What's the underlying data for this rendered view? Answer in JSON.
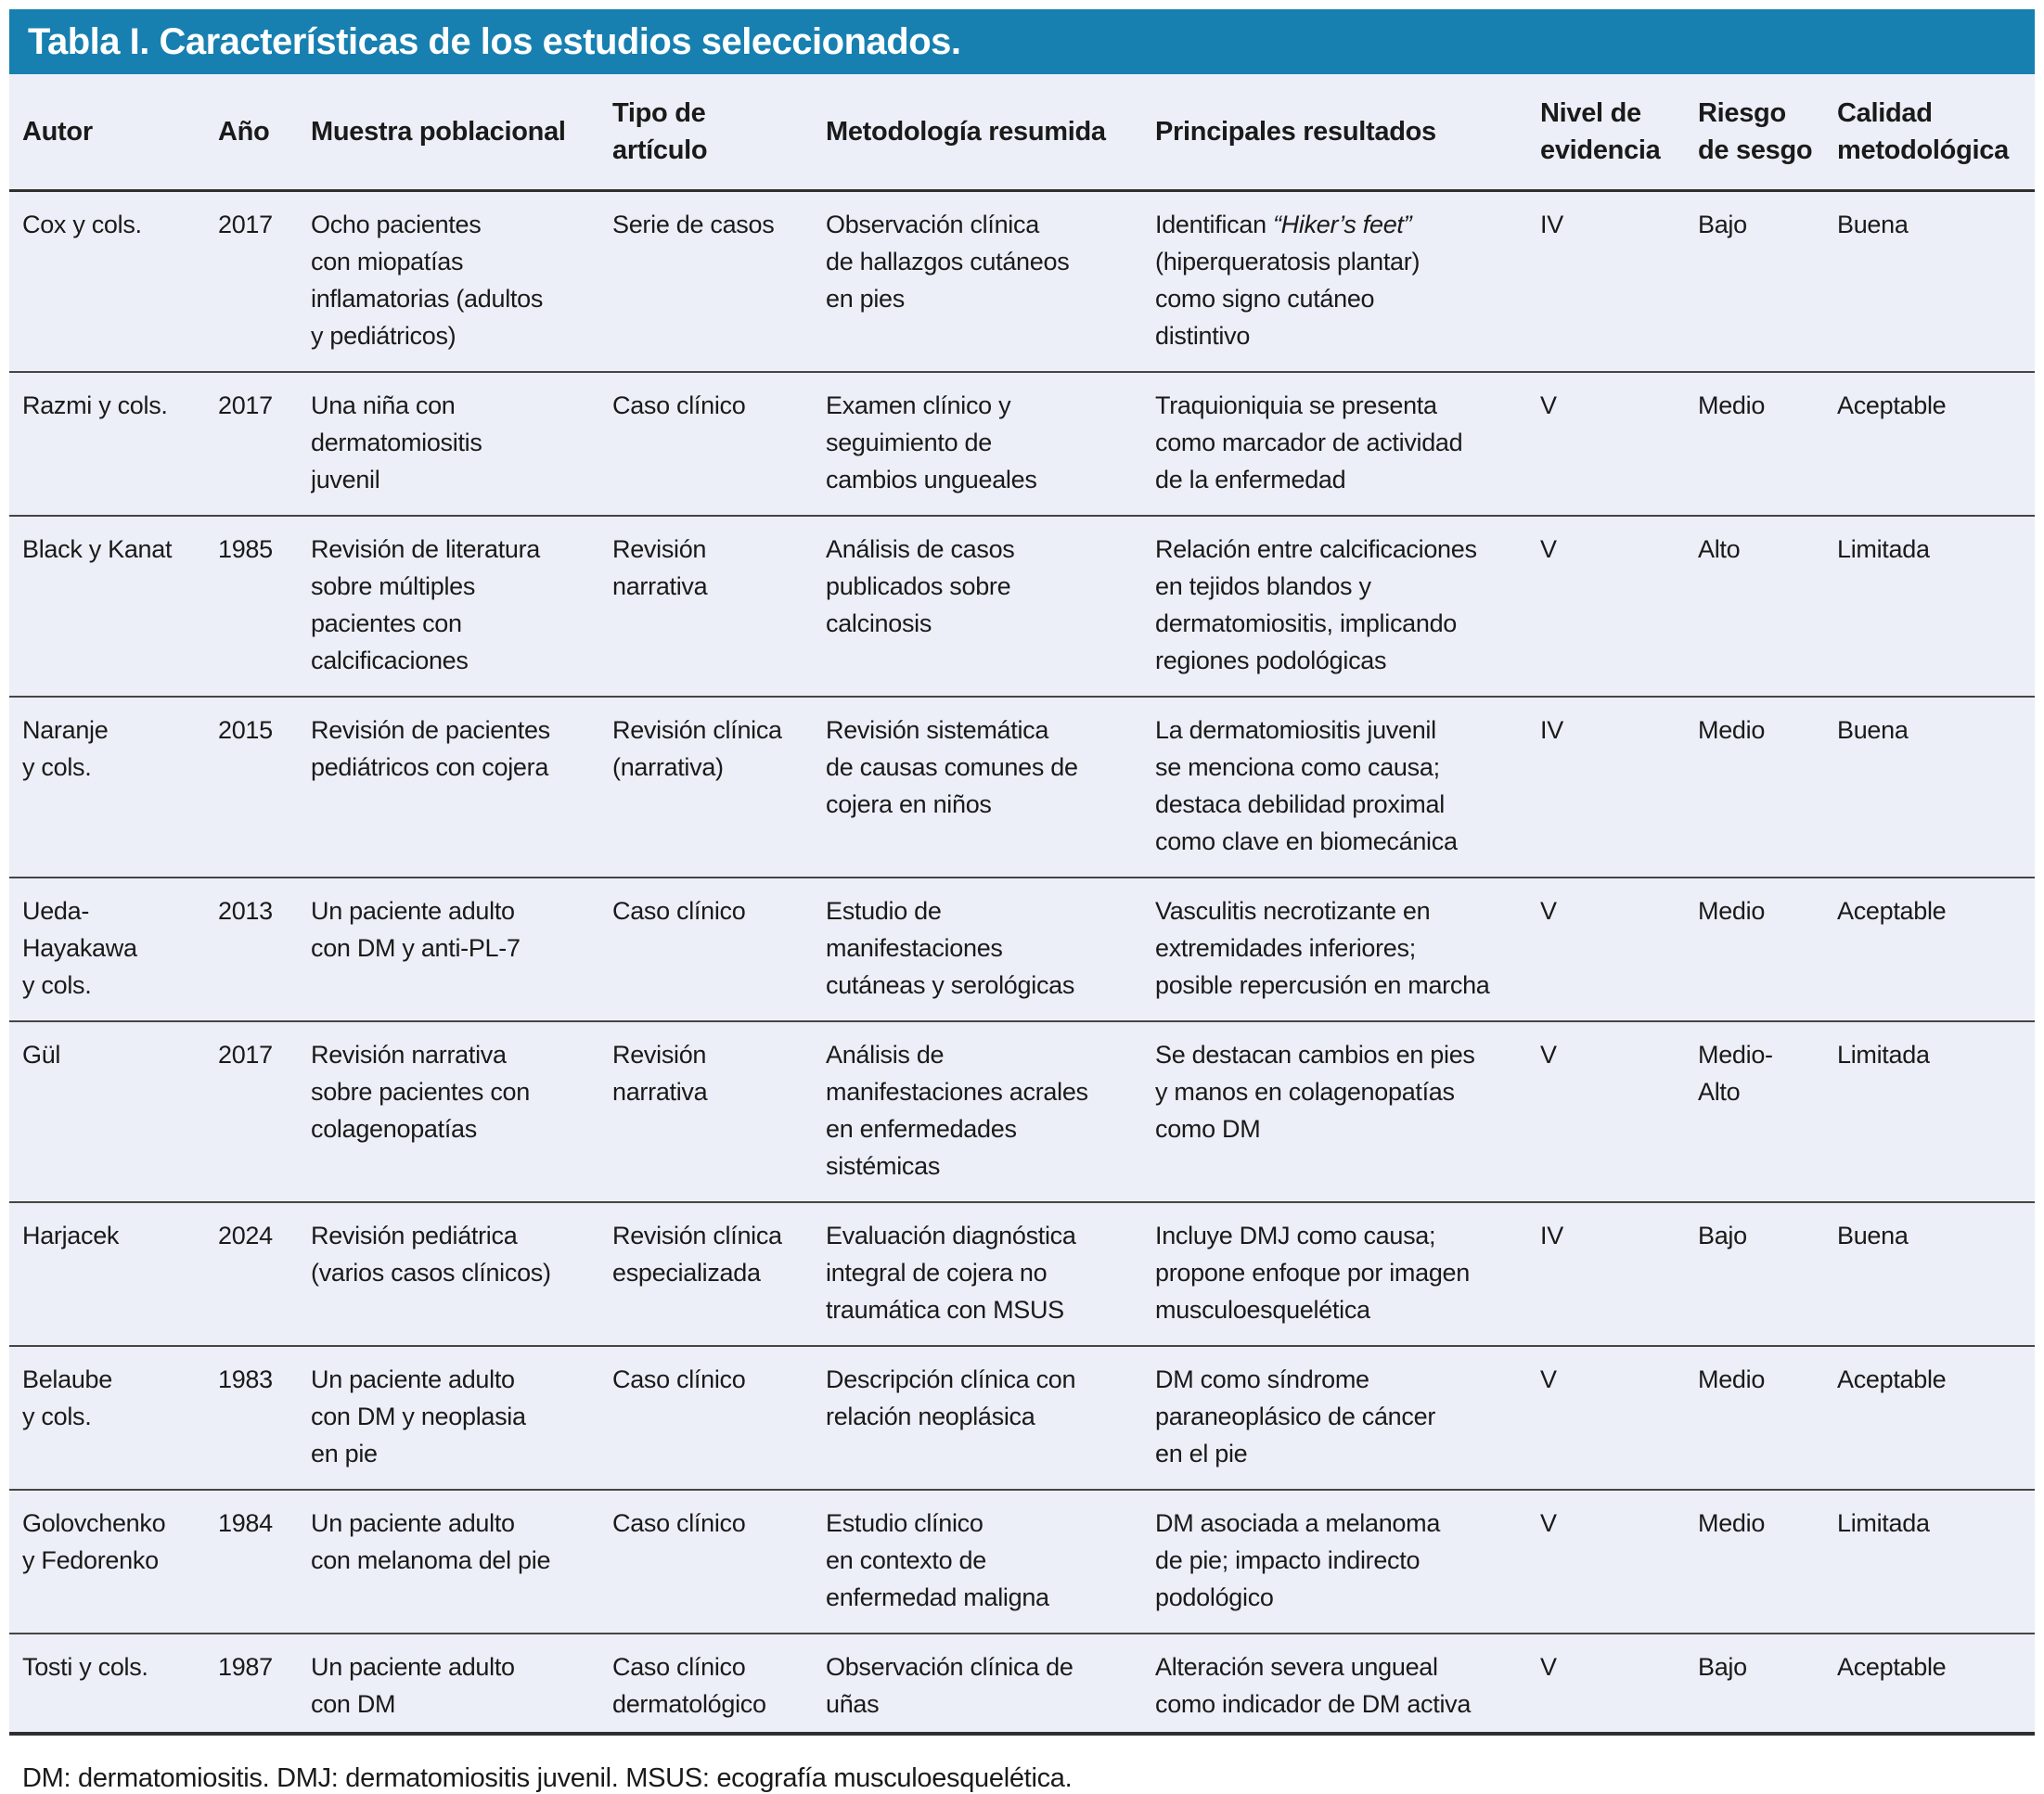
{
  "title": "Tabla I. Características de los estudios seleccionados.",
  "columns": [
    "Autor",
    "Año",
    "Muestra poblacional",
    "Tipo de\nartículo",
    "Metodología resumida",
    "Principales resultados",
    "Nivel de\nevidencia",
    "Riesgo\nde sesgo",
    "Calidad\nmetodológica"
  ],
  "rows": [
    {
      "autor": "Cox y cols.",
      "anio": "2017",
      "muestra": "Ocho pacientes\ncon miopatías\ninflamatorias (adultos\ny pediátricos)",
      "tipo": "Serie de casos",
      "metodologia": "Observación clínica\nde hallazgos cutáneos\nen pies",
      "resultados": [
        {
          "t": "Identifican "
        },
        {
          "t": "“Hiker’s feet”",
          "i": true
        },
        {
          "t": "\n(hiperqueratosis plantar)\ncomo signo cutáneo\ndistintivo"
        }
      ],
      "nivel": "IV",
      "riesgo": "Bajo",
      "calidad": "Buena"
    },
    {
      "autor": "Razmi y cols.",
      "anio": "2017",
      "muestra": "Una niña con\ndermatomiositis\njuvenil",
      "tipo": "Caso clínico",
      "metodologia": "Examen clínico y\nseguimiento de\ncambios ungueales",
      "resultados": "Traquioniquia se presenta\ncomo marcador de actividad\nde la enfermedad",
      "nivel": "V",
      "riesgo": "Medio",
      "calidad": "Aceptable"
    },
    {
      "autor": "Black y Kanat",
      "anio": "1985",
      "muestra": "Revisión de literatura\nsobre múltiples\npacientes con\ncalcificaciones",
      "tipo": "Revisión\nnarrativa",
      "metodologia": "Análisis de casos\npublicados sobre\ncalcinosis",
      "resultados": "Relación entre calcificaciones\nen tejidos blandos y\ndermatomiositis, implicando\nregiones podológicas",
      "nivel": "V",
      "riesgo": "Alto",
      "calidad": "Limitada"
    },
    {
      "autor": "Naranje\ny cols.",
      "anio": "2015",
      "muestra": "Revisión de pacientes\npediátricos con cojera",
      "tipo": "Revisión clínica\n(narrativa)",
      "metodologia": "Revisión sistemática\nde causas comunes de\ncojera en niños",
      "resultados": "La dermatomiositis juvenil\nse menciona como causa;\ndestaca debilidad proximal\ncomo clave en biomecánica",
      "nivel": "IV",
      "riesgo": "Medio",
      "calidad": "Buena"
    },
    {
      "autor": "Ueda-\nHayakawa\ny cols.",
      "anio": "2013",
      "muestra": "Un paciente adulto\ncon DM y anti-PL-7",
      "tipo": "Caso clínico",
      "metodologia": "Estudio de\nmanifestaciones\ncutáneas y serológicas",
      "resultados": "Vasculitis necrotizante en\nextremidades inferiores;\nposible repercusión en marcha",
      "nivel": "V",
      "riesgo": "Medio",
      "calidad": "Aceptable"
    },
    {
      "autor": "Gül",
      "anio": "2017",
      "muestra": "Revisión narrativa\nsobre pacientes con\ncolagenopatías",
      "tipo": "Revisión\nnarrativa",
      "metodologia": "Análisis de\nmanifestaciones acrales\nen enfermedades\nsistémicas",
      "resultados": "Se destacan cambios en pies\ny manos en colagenopatías\ncomo DM",
      "nivel": "V",
      "riesgo": "Medio-\nAlto",
      "calidad": "Limitada"
    },
    {
      "autor": "Harjacek",
      "anio": "2024",
      "muestra": "Revisión pediátrica\n(varios casos clínicos)",
      "tipo": "Revisión clínica\nespecializada",
      "metodologia": "Evaluación diagnóstica\nintegral de cojera no\ntraumática con MSUS",
      "resultados": "Incluye DMJ como causa;\npropone enfoque por imagen\nmusculoesquelética",
      "nivel": "IV",
      "riesgo": "Bajo",
      "calidad": "Buena"
    },
    {
      "autor": "Belaube\ny cols.",
      "anio": "1983",
      "muestra": "Un paciente adulto\ncon DM y neoplasia\nen pie",
      "tipo": "Caso clínico",
      "metodologia": "Descripción clínica con\nrelación neoplásica",
      "resultados": "DM como síndrome\nparaneoplásico de cáncer\nen el pie",
      "nivel": "V",
      "riesgo": "Medio",
      "calidad": "Aceptable"
    },
    {
      "autor": "Golovchenko\ny Fedorenko",
      "anio": "1984",
      "muestra": "Un paciente adulto\ncon melanoma del pie",
      "tipo": "Caso clínico",
      "metodologia": "Estudio clínico\nen contexto de\nenfermedad maligna",
      "resultados": "DM asociada a melanoma\nde pie; impacto indirecto\npodológico",
      "nivel": "V",
      "riesgo": "Medio",
      "calidad": "Limitada"
    },
    {
      "autor": "Tosti y cols.",
      "anio": "1987",
      "muestra": "Un paciente adulto\ncon DM",
      "tipo": "Caso clínico\ndermatológico",
      "metodologia": "Observación clínica de\nuñas",
      "resultados": "Alteración severa ungueal\ncomo indicador de DM activa",
      "nivel": "V",
      "riesgo": "Bajo",
      "calidad": "Aceptable"
    }
  ],
  "footnote": "DM: dermatomiositis. DMJ: dermatomiositis juvenil. MSUS: ecografía musculoesquelética.",
  "colors": {
    "header_bar": "#1780B0",
    "panel_bg": "#ECEFF7",
    "rule": "#2F2F2F",
    "row_rule": "#454545",
    "title_text": "#FFFFFF",
    "body_text": "#1A1A1A"
  }
}
